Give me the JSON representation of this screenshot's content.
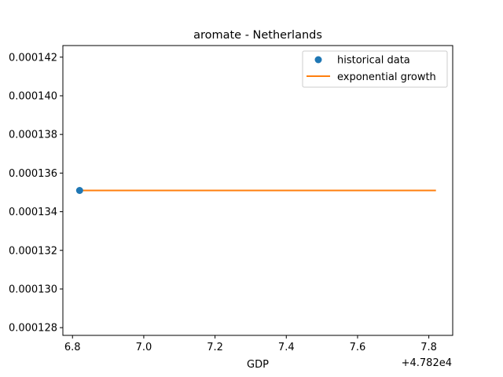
{
  "chart_data": {
    "type": "line",
    "title": "aromate - Netherlands",
    "xlabel": "GDP",
    "ylabel": "",
    "x_offset_label": "+4.782e4",
    "xlim": [
      6.773,
      7.867
    ],
    "ylim": [
      0.0001276,
      0.0001426
    ],
    "x_ticks": [
      6.8,
      7.0,
      7.2,
      7.4,
      7.6,
      7.8
    ],
    "x_tick_labels": [
      "6.8",
      "7.0",
      "7.2",
      "7.4",
      "7.6",
      "7.8"
    ],
    "y_ticks": [
      0.000128,
      0.00013,
      0.000132,
      0.000134,
      0.000136,
      0.000138,
      0.00014,
      0.000142
    ],
    "y_tick_labels": [
      "0.000128",
      "0.000130",
      "0.000132",
      "0.000134",
      "0.000136",
      "0.000138",
      "0.000140",
      "0.000142"
    ],
    "grid": false,
    "legend_position": "top-right",
    "series": [
      {
        "name": "historical data",
        "kind": "scatter",
        "color": "#1f77b4",
        "x": [
          6.82
        ],
        "y": [
          0.0001351
        ]
      },
      {
        "name": "exponential growth",
        "kind": "line",
        "color": "#ff7f0e",
        "x": [
          6.82,
          7.82
        ],
        "y": [
          0.0001351,
          0.0001351
        ]
      }
    ]
  }
}
